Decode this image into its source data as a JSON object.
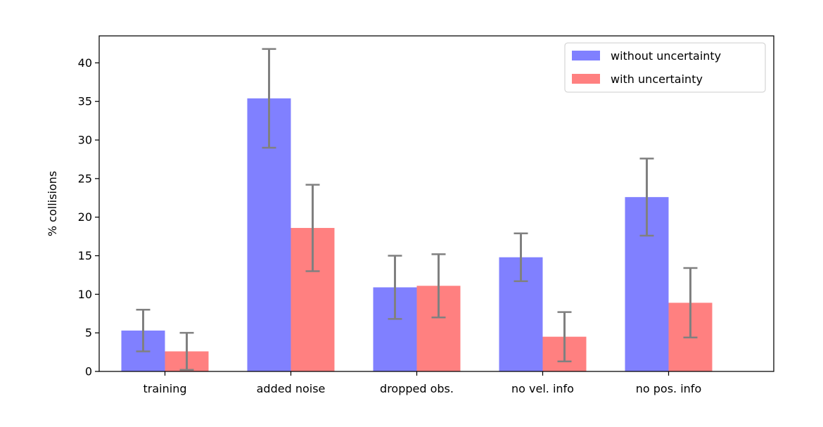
{
  "chart_data": {
    "type": "bar",
    "title": "",
    "xlabel": "",
    "ylabel": "% collisions",
    "categories": [
      "training",
      "added noise",
      "dropped obs.",
      "no vel. info",
      "no pos. info"
    ],
    "series": [
      {
        "name": "without uncertainty",
        "color": "#8080ff",
        "values": [
          5.3,
          35.4,
          10.9,
          14.8,
          22.6
        ],
        "error": [
          2.7,
          6.4,
          4.1,
          3.1,
          5.0
        ]
      },
      {
        "name": "with uncertainty",
        "color": "#ff8080",
        "values": [
          2.6,
          18.6,
          11.1,
          4.5,
          8.9
        ],
        "error": [
          2.4,
          5.6,
          4.1,
          3.2,
          4.5
        ]
      }
    ],
    "error_bar_color": "#808080",
    "ylim": [
      0,
      43.5
    ],
    "yticks": [
      0,
      5,
      10,
      15,
      20,
      25,
      30,
      35,
      40
    ],
    "grid": false,
    "legend_position": "top-right"
  }
}
